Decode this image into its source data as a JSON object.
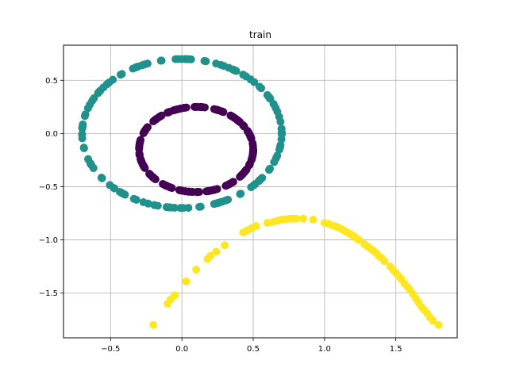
{
  "chart_data": {
    "type": "scatter",
    "title": "train",
    "xlabel": "",
    "ylabel": "",
    "xlim": [
      -0.83,
      1.93
    ],
    "ylim": [
      -1.92,
      0.83
    ],
    "xticks": [
      -0.5,
      0.0,
      0.5,
      1.0,
      1.5
    ],
    "yticks": [
      -1.5,
      -1.0,
      -0.5,
      0.0,
      0.5
    ],
    "xtick_labels": [
      "−0.5",
      "0.0",
      "0.5",
      "1.0",
      "1.5"
    ],
    "ytick_labels": [
      "−1.5",
      "−1.0",
      "−0.5",
      "0.0",
      "0.5"
    ],
    "grid": true,
    "legend": "none",
    "marker_size": 6,
    "series": [
      {
        "color": "#440154",
        "shape": "ellipse",
        "center": [
          0.1,
          -0.15
        ],
        "radii": [
          0.4,
          0.4
        ],
        "points": 200
      },
      {
        "color": "#21918c",
        "shape": "ellipse",
        "center": [
          0.0,
          0.0
        ],
        "radii": [
          0.7,
          0.7
        ],
        "points": 150
      },
      {
        "color": "#fde725",
        "shape": "points",
        "points_xy": [
          [
            -0.2,
            -1.8
          ],
          [
            -0.1,
            -1.6
          ],
          [
            -0.08,
            -1.56
          ],
          [
            -0.05,
            -1.52
          ],
          [
            0.03,
            -1.39
          ],
          [
            0.1,
            -1.28
          ],
          [
            0.18,
            -1.18
          ],
          [
            0.2,
            -1.15
          ],
          [
            0.24,
            -1.11
          ],
          [
            0.3,
            -1.05
          ],
          [
            0.43,
            -0.93
          ],
          [
            0.46,
            -0.91
          ],
          [
            0.49,
            -0.89
          ],
          [
            0.52,
            -0.87
          ],
          [
            0.6,
            -0.84
          ],
          [
            0.64,
            -0.83
          ],
          [
            0.67,
            -0.82
          ],
          [
            0.7,
            -0.81
          ],
          [
            0.73,
            -0.805
          ],
          [
            0.76,
            -0.8
          ],
          [
            0.78,
            -0.8
          ],
          [
            0.8,
            -0.8
          ],
          [
            0.85,
            -0.8
          ],
          [
            0.92,
            -0.81
          ],
          [
            1.0,
            -0.84
          ],
          [
            1.03,
            -0.85
          ],
          [
            1.06,
            -0.865
          ],
          [
            1.08,
            -0.875
          ],
          [
            1.1,
            -0.885
          ],
          [
            1.12,
            -0.9
          ],
          [
            1.14,
            -0.915
          ],
          [
            1.16,
            -0.93
          ],
          [
            1.18,
            -0.945
          ],
          [
            1.2,
            -0.96
          ],
          [
            1.22,
            -0.98
          ],
          [
            1.24,
            -1.0
          ],
          [
            1.28,
            -1.04
          ],
          [
            1.3,
            -1.06
          ],
          [
            1.32,
            -1.08
          ],
          [
            1.34,
            -1.1
          ],
          [
            1.36,
            -1.12
          ],
          [
            1.38,
            -1.15
          ],
          [
            1.4,
            -1.17
          ],
          [
            1.42,
            -1.2
          ],
          [
            1.46,
            -1.25
          ],
          [
            1.48,
            -1.28
          ],
          [
            1.5,
            -1.31
          ],
          [
            1.52,
            -1.34
          ],
          [
            1.54,
            -1.37
          ],
          [
            1.56,
            -1.41
          ],
          [
            1.58,
            -1.44
          ],
          [
            1.6,
            -1.47
          ],
          [
            1.62,
            -1.51
          ],
          [
            1.64,
            -1.55
          ],
          [
            1.66,
            -1.59
          ],
          [
            1.68,
            -1.63
          ],
          [
            1.7,
            -1.66
          ],
          [
            1.72,
            -1.69
          ],
          [
            1.74,
            -1.73
          ],
          [
            1.76,
            -1.76
          ],
          [
            1.8,
            -1.8
          ]
        ]
      }
    ]
  }
}
